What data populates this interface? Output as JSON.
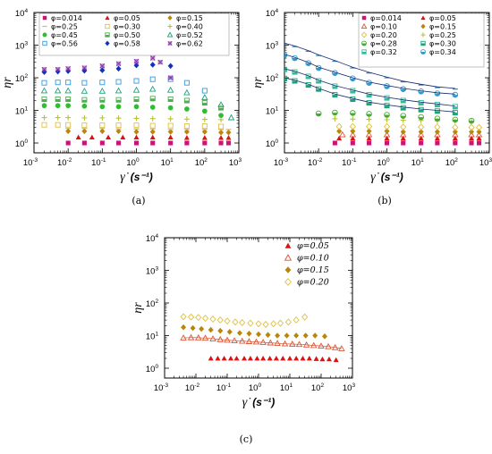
{
  "chart_data": [
    {
      "panel": "a",
      "caption": "(a)",
      "type": "scatter",
      "xscale": "log",
      "yscale": "log",
      "xlim": [
        0.001,
        1000
      ],
      "ylim": [
        0.5,
        10000
      ],
      "xlabel": "γ̇ (s⁻¹)",
      "ylabel": "ηr",
      "legend_position": "top",
      "legend_columns": 3,
      "series": [
        {
          "name": "φ=0.014",
          "color": "#cc1177",
          "marker": "square-fill",
          "x": [
            0.01,
            0.03,
            0.1,
            0.3,
            1,
            3,
            10,
            30,
            100,
            300,
            500
          ],
          "y": [
            1.0,
            1.0,
            1.0,
            1.0,
            1.0,
            1.0,
            1.0,
            1.0,
            1.0,
            1.0,
            1.0
          ]
        },
        {
          "name": "φ=0.05",
          "color": "#dd1111",
          "marker": "triangle-fill",
          "x": [
            0.02,
            0.05,
            0.15,
            0.4,
            1,
            3,
            10,
            30,
            100,
            300,
            500
          ],
          "y": [
            1.5,
            1.5,
            1.5,
            1.5,
            1.5,
            1.5,
            1.5,
            1.45,
            1.45,
            1.45,
            1.45
          ]
        },
        {
          "name": "φ=0.15",
          "color": "#b8860b",
          "marker": "diamond-fill",
          "x": [
            0.01,
            0.03,
            0.1,
            0.3,
            1,
            3,
            10,
            30,
            100,
            300,
            500
          ],
          "y": [
            2.3,
            2.3,
            2.3,
            2.3,
            2.2,
            2.2,
            2.2,
            2.2,
            2.2,
            2.1,
            2.1
          ]
        },
        {
          "name": "φ=0.25",
          "color": "#d2b48c",
          "marker": "dash",
          "x": [
            0.01,
            0.03,
            0.1,
            0.3,
            1,
            3,
            10,
            30,
            100,
            300,
            500
          ],
          "y": [
            2.8,
            2.8,
            2.8,
            2.7,
            2.7,
            2.7,
            2.6,
            2.6,
            2.6,
            2.6,
            2.6
          ]
        },
        {
          "name": "φ=0.30",
          "color": "#e0c040",
          "marker": "square-open",
          "x": [
            0.002,
            0.005,
            0.01,
            0.03,
            0.1,
            0.3,
            1,
            3,
            10,
            30,
            100,
            300
          ],
          "y": [
            3.6,
            3.6,
            3.6,
            3.5,
            3.5,
            3.5,
            3.5,
            3.4,
            3.4,
            3.3,
            3.3,
            3.2
          ]
        },
        {
          "name": "φ=0.40",
          "color": "#b6c23a",
          "marker": "plus",
          "x": [
            0.002,
            0.005,
            0.01,
            0.03,
            0.1,
            0.3,
            1,
            3,
            10,
            30,
            100,
            300
          ],
          "y": [
            6.0,
            6.0,
            6.0,
            5.9,
            5.9,
            5.8,
            5.7,
            5.6,
            5.5,
            5.4,
            5.3,
            5.2
          ]
        },
        {
          "name": "φ=0.45",
          "color": "#33bb33",
          "marker": "circle-fill",
          "x": [
            0.002,
            0.005,
            0.01,
            0.03,
            0.1,
            0.3,
            1,
            3,
            10,
            30,
            100,
            300
          ],
          "y": [
            14,
            14,
            14,
            13.5,
            13,
            13,
            13,
            12.5,
            12,
            11,
            9.5,
            7
          ]
        },
        {
          "name": "φ=0.50",
          "color": "#4caf50",
          "marker": "half-square",
          "x": [
            0.002,
            0.005,
            0.01,
            0.03,
            0.1,
            0.3,
            1,
            3,
            10,
            30,
            100,
            300
          ],
          "y": [
            22,
            22,
            22,
            21,
            21,
            21,
            22,
            23,
            22,
            20,
            17,
            12
          ]
        },
        {
          "name": "φ=0.52",
          "color": "#1aa37a",
          "marker": "triangle-open",
          "x": [
            0.002,
            0.005,
            0.01,
            0.03,
            0.1,
            0.3,
            1,
            3,
            10,
            30,
            100,
            300,
            600
          ],
          "y": [
            40,
            40,
            40,
            39,
            39,
            40,
            42,
            45,
            42,
            35,
            25,
            15,
            6
          ]
        },
        {
          "name": "φ=0.56",
          "color": "#3399dd",
          "marker": "square-open",
          "x": [
            0.002,
            0.005,
            0.01,
            0.03,
            0.1,
            0.3,
            1,
            3,
            10,
            30,
            100
          ],
          "y": [
            70,
            72,
            72,
            70,
            72,
            75,
            80,
            90,
            90,
            70,
            40
          ]
        },
        {
          "name": "φ=0.58",
          "color": "#1133bb",
          "marker": "diamond-fill",
          "x": [
            0.002,
            0.005,
            0.01,
            0.03,
            0.1,
            0.3,
            1,
            3,
            10
          ],
          "y": [
            150,
            155,
            160,
            165,
            170,
            190,
            240,
            250,
            230
          ]
        },
        {
          "name": "φ=0.62",
          "color": "#8833aa",
          "marker": "cross-box",
          "x": [
            0.002,
            0.005,
            0.01,
            0.03,
            0.1,
            0.3,
            1,
            3,
            5,
            10
          ],
          "y": [
            180,
            180,
            190,
            200,
            230,
            270,
            320,
            400,
            300,
            100
          ]
        }
      ]
    },
    {
      "panel": "b",
      "caption": "(b)",
      "type": "scatter",
      "xscale": "log",
      "yscale": "log",
      "xlim": [
        0.001,
        1000
      ],
      "ylim": [
        0.5,
        10000
      ],
      "xlabel": "γ̇ (s⁻¹)",
      "ylabel": "ηr",
      "legend_position": "top-right",
      "legend_columns": 2,
      "series": [
        {
          "name": "φ=0.014",
          "color": "#cc1177",
          "marker": "square-fill",
          "x": [
            0.03,
            0.1,
            0.3,
            1,
            3,
            10,
            30,
            100,
            300,
            500
          ],
          "y": [
            1.0,
            1.0,
            1.0,
            1.0,
            1.0,
            1.0,
            1.0,
            1.0,
            1.0,
            1.0
          ]
        },
        {
          "name": "φ=0.05",
          "color": "#dd1111",
          "marker": "triangle-fill",
          "x": [
            0.04,
            0.1,
            0.3,
            1,
            3,
            10,
            30,
            100,
            300,
            500
          ],
          "y": [
            1.4,
            1.4,
            1.4,
            1.4,
            1.4,
            1.4,
            1.4,
            1.4,
            1.4,
            1.4
          ]
        },
        {
          "name": "φ=0.10",
          "color": "#dd5533",
          "marker": "triangle-open",
          "x": [
            0.05,
            0.1,
            0.3,
            1,
            3,
            10,
            30,
            100,
            300,
            500
          ],
          "y": [
            1.8,
            1.8,
            1.8,
            1.8,
            1.8,
            1.8,
            1.8,
            1.8,
            1.8,
            1.8
          ]
        },
        {
          "name": "φ=0.15",
          "color": "#b8860b",
          "marker": "diamond-fill",
          "x": [
            0.04,
            0.1,
            0.3,
            1,
            3,
            10,
            30,
            100,
            300,
            500
          ],
          "y": [
            2.3,
            2.3,
            2.3,
            2.3,
            2.2,
            2.2,
            2.2,
            2.2,
            2.2,
            2.2
          ]
        },
        {
          "name": "φ=0.20",
          "color": "#e0c040",
          "marker": "diamond-open",
          "x": [
            0.04,
            0.1,
            0.3,
            1,
            3,
            10,
            30,
            100,
            300,
            500
          ],
          "y": [
            3.2,
            3.2,
            3.2,
            3.2,
            3.1,
            3.1,
            3.1,
            3.0,
            3.0,
            3.0
          ]
        },
        {
          "name": "φ=0.25",
          "color": "#b6c23a",
          "marker": "plus",
          "x": [
            0.03,
            0.1,
            0.3,
            1,
            3,
            10,
            30,
            100,
            300
          ],
          "y": [
            5.5,
            5.4,
            5.3,
            5.2,
            5.0,
            4.9,
            4.8,
            4.7,
            4.6
          ]
        },
        {
          "name": "φ=0.28",
          "color": "#44aa33",
          "marker": "half-circle",
          "x": [
            0.01,
            0.03,
            0.1,
            0.3,
            1,
            3,
            10,
            30,
            100,
            300
          ],
          "y": [
            8.0,
            8.5,
            8.3,
            7.8,
            7.3,
            6.8,
            6.2,
            5.6,
            5.2,
            4.8
          ]
        },
        {
          "name": "φ=0.30",
          "color": "#1aa37a",
          "marker": "half-square",
          "x": [
            0.001,
            0.002,
            0.005,
            0.01,
            0.03,
            0.1,
            0.3,
            1,
            3,
            10,
            30,
            100
          ],
          "y": [
            95,
            80,
            60,
            45,
            30,
            22,
            17,
            14,
            12,
            10.5,
            9.5,
            8.5
          ]
        },
        {
          "name": "φ=0.32",
          "color": "#33bb99",
          "marker": "half-square",
          "x": [
            0.001,
            0.002,
            0.005,
            0.01,
            0.03,
            0.1,
            0.3,
            1,
            3,
            10,
            30,
            100
          ],
          "y": [
            180,
            150,
            110,
            80,
            55,
            40,
            30,
            24,
            20,
            17,
            15,
            13
          ]
        },
        {
          "name": "φ=0.34",
          "color": "#3399cc",
          "marker": "half-circle",
          "x": [
            0.001,
            0.002,
            0.005,
            0.01,
            0.03,
            0.1,
            0.3,
            1,
            3,
            10,
            30,
            100
          ],
          "y": [
            500,
            400,
            280,
            200,
            140,
            95,
            70,
            55,
            45,
            38,
            33,
            30
          ]
        },
        {
          "name": "",
          "color": "#2e7fc0",
          "marker": "dash",
          "x": [
            0.001,
            0.002,
            0.005,
            0.01,
            0.03,
            0.1,
            0.3,
            1,
            3,
            10,
            30,
            100
          ],
          "y": [
            1100,
            900,
            650,
            480,
            320,
            200,
            140,
            100,
            75,
            60,
            50,
            45
          ]
        }
      ]
    },
    {
      "panel": "c",
      "caption": "(c)",
      "type": "scatter",
      "xscale": "log",
      "yscale": "log",
      "xlim": [
        0.001,
        1000
      ],
      "ylim": [
        0.5,
        10000
      ],
      "xlabel": "γ̇ (s⁻¹)",
      "ylabel": "ηr",
      "legend_position": "top-right",
      "legend_columns": 1,
      "series": [
        {
          "name": "φ=0.05",
          "color": "#dd1111",
          "marker": "triangle-fill",
          "x": [
            0.03,
            0.05,
            0.08,
            0.13,
            0.2,
            0.35,
            0.55,
            0.9,
            1.4,
            2.3,
            3.7,
            6,
            10,
            16,
            26,
            42,
            70,
            110,
            180,
            300
          ],
          "y": [
            2.0,
            2.0,
            2.0,
            2.0,
            2.0,
            2.0,
            2.0,
            2.0,
            2.0,
            2.0,
            2.0,
            2.0,
            2.0,
            2.0,
            2.0,
            2.0,
            1.95,
            1.9,
            1.9,
            1.8
          ]
        },
        {
          "name": "φ=0.10",
          "color": "#dd5533",
          "marker": "triangle-open",
          "x": [
            0.004,
            0.007,
            0.012,
            0.02,
            0.035,
            0.06,
            0.1,
            0.17,
            0.3,
            0.5,
            0.85,
            1.4,
            2.4,
            4,
            7,
            12,
            20,
            34,
            58,
            100,
            170,
            280,
            450
          ],
          "y": [
            8.5,
            8.7,
            8.6,
            8.4,
            8.0,
            7.6,
            7.3,
            7.0,
            6.8,
            6.6,
            6.4,
            6.2,
            6.0,
            5.8,
            5.6,
            5.5,
            5.4,
            5.2,
            5.0,
            4.8,
            4.6,
            4.3,
            4.0
          ]
        },
        {
          "name": "φ=0.15",
          "color": "#b8860b",
          "marker": "diamond-fill",
          "x": [
            0.004,
            0.008,
            0.015,
            0.03,
            0.06,
            0.12,
            0.25,
            0.5,
            1,
            2,
            4,
            8,
            16,
            32,
            64,
            130
          ],
          "y": [
            18,
            17,
            16,
            15,
            14,
            13,
            12,
            11.5,
            11,
            10.5,
            10,
            10,
            10,
            10,
            10,
            9.5
          ]
        },
        {
          "name": "φ=0.20",
          "color": "#e0c040",
          "marker": "diamond-open",
          "x": [
            0.004,
            0.007,
            0.012,
            0.02,
            0.035,
            0.06,
            0.1,
            0.18,
            0.3,
            0.55,
            1,
            1.7,
            3,
            5,
            9,
            16,
            30
          ],
          "y": [
            38,
            37,
            36,
            34,
            32,
            30,
            28,
            26,
            25,
            24,
            23,
            22,
            23,
            24,
            26,
            30,
            37
          ]
        }
      ]
    }
  ]
}
